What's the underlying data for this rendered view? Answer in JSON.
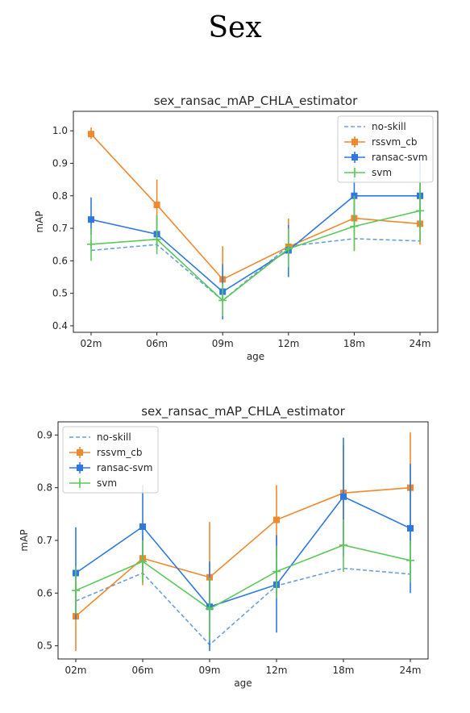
{
  "page": {
    "title": "Sex"
  },
  "chart_data": [
    {
      "type": "line",
      "title": "sex_ransac_mAP_CHLA_estimator",
      "xlabel": "age",
      "ylabel": "mAP",
      "categories": [
        "02m",
        "06m",
        "09m",
        "12m",
        "18m",
        "24m"
      ],
      "ylim": [
        0.38,
        1.06
      ],
      "yticks": [
        "0.4",
        "0.5",
        "0.6",
        "0.7",
        "0.8",
        "0.9",
        "1.0"
      ],
      "legend_position": "top-right",
      "series": [
        {
          "name": "no-skill",
          "color": "#6a9fe0",
          "style": "dashed",
          "values": [
            0.632,
            0.65,
            0.478,
            0.645,
            0.668,
            0.661
          ]
        },
        {
          "name": "rssvm_cb",
          "color": "#f0892d",
          "marker": "square",
          "values": [
            0.99,
            0.772,
            0.543,
            0.643,
            0.731,
            0.714
          ],
          "err_low": [
            0.975,
            0.7,
            0.48,
            0.62,
            0.63,
            0.65
          ],
          "err_high": [
            1.01,
            0.85,
            0.645,
            0.73,
            0.79,
            0.73
          ]
        },
        {
          "name": "ransac-svm",
          "color": "#2e78e0",
          "marker": "square",
          "values": [
            0.727,
            0.682,
            0.505,
            0.632,
            0.8,
            0.8
          ],
          "err_low": [
            0.68,
            0.64,
            0.42,
            0.55,
            0.72,
            0.7
          ],
          "err_high": [
            0.795,
            0.74,
            0.59,
            0.71,
            0.89,
            0.92
          ]
        },
        {
          "name": "svm",
          "color": "#5cc85c",
          "marker": "plus",
          "values": [
            0.651,
            0.666,
            0.478,
            0.637,
            0.706,
            0.754
          ],
          "err_low": [
            0.6,
            0.62,
            0.43,
            0.58,
            0.63,
            0.66
          ],
          "err_high": [
            0.7,
            0.74,
            0.53,
            0.7,
            0.8,
            0.85
          ]
        }
      ]
    },
    {
      "type": "line",
      "title": "sex_ransac_mAP_CHLA_estimator",
      "xlabel": "age",
      "ylabel": "mAP",
      "categories": [
        "02m",
        "06m",
        "09m",
        "12m",
        "18m",
        "24m"
      ],
      "ylim": [
        0.475,
        0.925
      ],
      "yticks": [
        "0.5",
        "0.6",
        "0.7",
        "0.8",
        "0.9"
      ],
      "legend_position": "top-left",
      "series": [
        {
          "name": "no-skill",
          "color": "#6a9fe0",
          "style": "dashed",
          "values": [
            0.585,
            0.638,
            0.502,
            0.614,
            0.647,
            0.636
          ]
        },
        {
          "name": "rssvm_cb",
          "color": "#f0892d",
          "marker": "square",
          "values": [
            0.556,
            0.666,
            0.63,
            0.739,
            0.79,
            0.8
          ],
          "err_low": [
            0.49,
            0.615,
            0.56,
            0.67,
            0.7,
            0.69
          ],
          "err_high": [
            0.62,
            0.71,
            0.735,
            0.805,
            0.88,
            0.905
          ]
        },
        {
          "name": "ransac-svm",
          "color": "#2e78e0",
          "marker": "square",
          "values": [
            0.638,
            0.726,
            0.574,
            0.616,
            0.783,
            0.723
          ],
          "err_low": [
            0.55,
            0.64,
            0.49,
            0.525,
            0.67,
            0.6
          ],
          "err_high": [
            0.725,
            0.805,
            0.66,
            0.71,
            0.895,
            0.845
          ]
        },
        {
          "name": "svm",
          "color": "#5cc85c",
          "marker": "plus",
          "values": [
            0.605,
            0.66,
            0.57,
            0.641,
            0.691,
            0.662
          ],
          "err_low": [
            0.56,
            0.62,
            0.51,
            0.59,
            0.64,
            0.62
          ],
          "err_high": [
            0.65,
            0.7,
            0.63,
            0.69,
            0.74,
            0.7
          ]
        }
      ]
    }
  ]
}
